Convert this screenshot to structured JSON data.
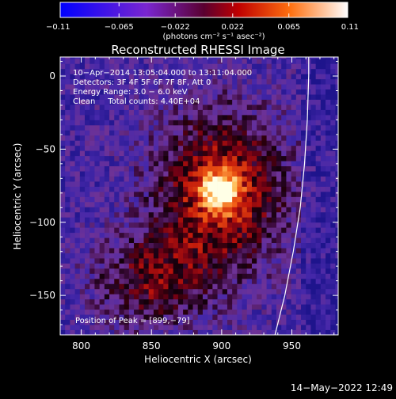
{
  "chart_data": {
    "type": "heatmap",
    "title": "Reconstructed RHESSI Image",
    "xlabel": "Heliocentric X (arcsec)",
    "ylabel": "Heliocentric Y (arcsec)",
    "xlim": [
      785,
      983
    ],
    "ylim": [
      -177,
      13
    ],
    "x_ticks": [
      800,
      850,
      900,
      950
    ],
    "y_ticks": [
      0,
      -50,
      -100,
      -150
    ],
    "x_tick_labels": [
      "800",
      "850",
      "900",
      "950"
    ],
    "y_tick_labels": [
      "0",
      "−50",
      "−100",
      "−150"
    ],
    "colorbar": {
      "min": -0.11,
      "max": 0.11,
      "ticks": [
        -0.11,
        -0.065,
        -0.022,
        0.022,
        0.065,
        0.11
      ],
      "tick_labels": [
        "−0.11",
        "−0.065",
        "−0.022",
        "0.022",
        "0.065",
        "0.11"
      ],
      "units_label": "(photons cm⁻² s⁻¹ asec⁻²)"
    },
    "annotations": [
      "10−Apr−2014 13:05:04.000 to 13:11:04.000",
      "Detectors: 3F 4F 5F 6F 7F 8F, Att 0",
      "Energy Range: 3.0 − 6.0 keV",
      "Clean     Total counts: 4.40E+04"
    ],
    "peak_label": "Position of Peak = [899,−79]",
    "peak": [
      899,
      -79
    ],
    "limb_arc": [
      [
        938,
        -177
      ],
      [
        945,
        -150
      ],
      [
        951,
        -120
      ],
      [
        956,
        -90
      ],
      [
        959,
        -60
      ],
      [
        961,
        -30
      ],
      [
        962,
        0
      ],
      [
        962,
        13
      ]
    ],
    "colors": {
      "background": "#000000",
      "limb": "#ffffff"
    }
  },
  "footer": {
    "date": "14−May−2022 12:49"
  }
}
